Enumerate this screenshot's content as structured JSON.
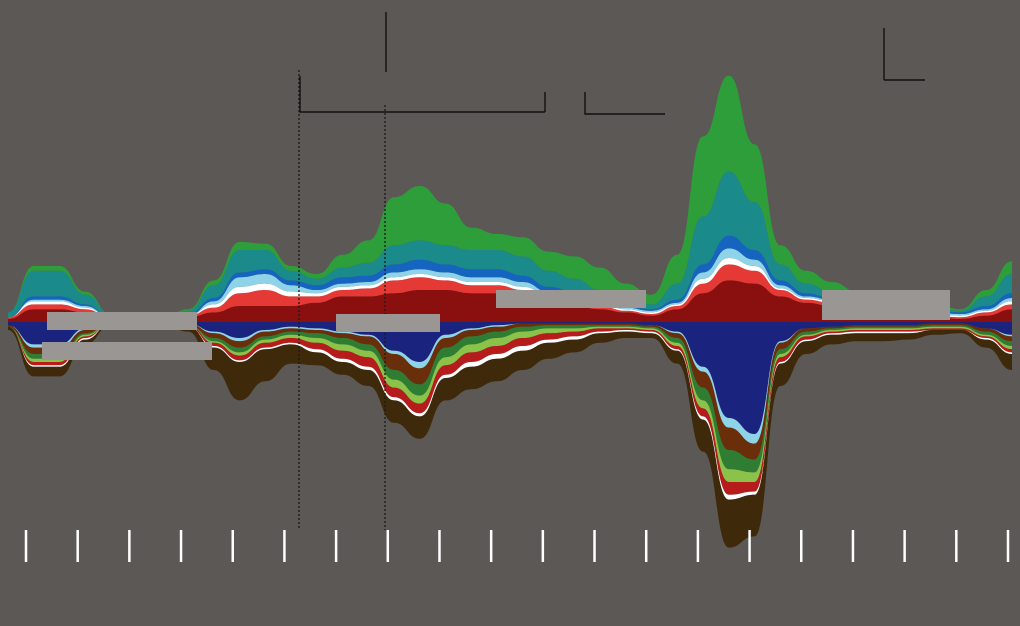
{
  "chart_data": {
    "type": "area",
    "subtype": "streamgraph",
    "title": "",
    "xlabel": "",
    "ylabel": "",
    "grid": false,
    "legend": "none",
    "x": [
      0,
      0.5,
      1,
      1.5,
      2,
      2.5,
      3,
      3.5,
      4,
      4.5,
      5,
      5.5,
      6,
      6.5,
      7,
      7.5,
      8,
      8.5,
      9,
      9.5,
      10,
      10.5,
      11,
      11.5,
      12,
      12.5,
      13,
      13.5,
      14,
      14.5,
      15,
      15.5,
      16,
      16.5,
      17,
      17.5,
      18,
      18.5,
      19,
      19.5
    ],
    "xlim": [
      0,
      19.5
    ],
    "tick_count": 20,
    "baseline_y": 322,
    "series": [
      {
        "color": "#1a237e",
        "side": "below",
        "values": [
          2,
          14,
          14,
          4,
          1,
          0,
          0,
          1,
          6,
          10,
          5,
          3,
          4,
          6,
          8,
          18,
          25,
          8,
          4,
          2,
          1,
          1,
          1,
          1,
          1,
          2,
          6,
          28,
          60,
          70,
          12,
          4,
          3,
          2,
          2,
          2,
          1,
          1,
          4,
          8
        ]
      },
      {
        "color": "#8fd3e8",
        "side": "below",
        "values": [
          0,
          2,
          2,
          1,
          0,
          0,
          0,
          0,
          1,
          2,
          1,
          1,
          1,
          1,
          1,
          2,
          4,
          2,
          1,
          1,
          0,
          0,
          0,
          0,
          0,
          0,
          1,
          3,
          6,
          6,
          1,
          0,
          0,
          0,
          0,
          0,
          0,
          0,
          0,
          1
        ]
      },
      {
        "color": "#6a2e0a",
        "side": "below",
        "values": [
          1,
          4,
          4,
          2,
          0,
          0,
          0,
          1,
          3,
          4,
          3,
          2,
          2,
          3,
          5,
          10,
          10,
          6,
          4,
          3,
          2,
          1,
          1,
          1,
          1,
          1,
          3,
          10,
          14,
          10,
          4,
          2,
          1,
          1,
          1,
          1,
          1,
          1,
          2,
          3
        ]
      },
      {
        "color": "#2e7d32",
        "side": "below",
        "values": [
          0,
          3,
          3,
          1,
          0,
          0,
          0,
          0,
          2,
          3,
          2,
          2,
          3,
          4,
          4,
          6,
          7,
          6,
          5,
          4,
          3,
          2,
          2,
          1,
          1,
          1,
          3,
          8,
          12,
          8,
          3,
          2,
          1,
          1,
          1,
          1,
          1,
          1,
          2,
          3
        ]
      },
      {
        "color": "#8bc34a",
        "side": "below",
        "values": [
          0,
          2,
          2,
          1,
          0,
          0,
          0,
          0,
          1,
          2,
          2,
          2,
          3,
          4,
          4,
          5,
          5,
          5,
          5,
          5,
          4,
          3,
          2,
          1,
          1,
          1,
          2,
          5,
          8,
          6,
          2,
          1,
          1,
          1,
          1,
          1,
          1,
          1,
          1,
          2
        ]
      },
      {
        "color": "#b71c1c",
        "side": "below",
        "values": [
          0,
          2,
          2,
          1,
          0,
          0,
          0,
          1,
          2,
          3,
          3,
          3,
          4,
          5,
          6,
          6,
          6,
          6,
          6,
          5,
          5,
          4,
          3,
          2,
          1,
          1,
          2,
          5,
          8,
          6,
          3,
          2,
          1,
          1,
          1,
          1,
          1,
          1,
          1,
          2
        ]
      },
      {
        "color": "#ffffff",
        "side": "below",
        "values": [
          0,
          1,
          1,
          1,
          0,
          0,
          0,
          0,
          1,
          1,
          1,
          1,
          2,
          2,
          2,
          2,
          2,
          2,
          3,
          3,
          3,
          2,
          2,
          1,
          1,
          1,
          1,
          2,
          3,
          2,
          1,
          1,
          1,
          1,
          1,
          1,
          0,
          0,
          1,
          1
        ]
      },
      {
        "color": "#3e2a0a",
        "side": "below",
        "values": [
          2,
          6,
          6,
          3,
          1,
          1,
          1,
          3,
          14,
          24,
          20,
          12,
          8,
          8,
          10,
          14,
          14,
          14,
          14,
          14,
          12,
          10,
          8,
          6,
          4,
          3,
          8,
          20,
          30,
          26,
          14,
          8,
          6,
          5,
          5,
          4,
          3,
          2,
          5,
          10
        ]
      },
      {
        "color": "#8a1010",
        "side": "above",
        "values": [
          2,
          8,
          8,
          6,
          2,
          1,
          1,
          3,
          6,
          10,
          10,
          10,
          12,
          16,
          16,
          18,
          20,
          20,
          18,
          18,
          16,
          12,
          10,
          8,
          6,
          4,
          8,
          18,
          26,
          24,
          16,
          12,
          10,
          8,
          6,
          4,
          3,
          2,
          4,
          8
        ]
      },
      {
        "color": "#e53935",
        "side": "above",
        "values": [
          1,
          3,
          3,
          2,
          1,
          0,
          0,
          1,
          3,
          8,
          10,
          6,
          4,
          4,
          5,
          8,
          8,
          6,
          5,
          5,
          4,
          3,
          3,
          2,
          1,
          1,
          2,
          6,
          10,
          8,
          4,
          2,
          2,
          1,
          1,
          1,
          1,
          1,
          2,
          3
        ]
      },
      {
        "color": "#ffffff",
        "side": "above",
        "values": [
          0,
          2,
          2,
          1,
          0,
          0,
          0,
          0,
          2,
          4,
          4,
          3,
          2,
          2,
          2,
          2,
          2,
          2,
          2,
          2,
          2,
          2,
          1,
          1,
          1,
          1,
          1,
          3,
          4,
          3,
          1,
          1,
          1,
          1,
          1,
          1,
          1,
          1,
          1,
          2
        ]
      },
      {
        "color": "#8fd3e8",
        "side": "above",
        "values": [
          0,
          1,
          1,
          1,
          0,
          0,
          0,
          0,
          2,
          6,
          6,
          4,
          2,
          2,
          2,
          3,
          3,
          3,
          3,
          3,
          3,
          2,
          2,
          1,
          1,
          1,
          1,
          4,
          6,
          4,
          2,
          1,
          1,
          1,
          1,
          1,
          1,
          1,
          1,
          2
        ]
      },
      {
        "color": "#1565c0",
        "side": "above",
        "values": [
          0,
          2,
          2,
          1,
          0,
          0,
          0,
          1,
          2,
          3,
          3,
          3,
          3,
          4,
          4,
          5,
          6,
          5,
          5,
          5,
          4,
          3,
          3,
          2,
          1,
          1,
          2,
          5,
          8,
          6,
          3,
          2,
          1,
          1,
          1,
          1,
          1,
          1,
          2,
          3
        ]
      },
      {
        "color": "#1a8a8a",
        "side": "above",
        "values": [
          3,
          16,
          16,
          6,
          2,
          1,
          1,
          2,
          8,
          14,
          12,
          6,
          4,
          6,
          8,
          12,
          12,
          12,
          12,
          12,
          12,
          10,
          8,
          6,
          4,
          3,
          10,
          30,
          40,
          30,
          10,
          6,
          4,
          3,
          2,
          2,
          2,
          1,
          6,
          12
        ]
      },
      {
        "color": "#2e9e3a",
        "side": "above",
        "values": [
          0,
          3,
          3,
          2,
          0,
          0,
          0,
          1,
          3,
          5,
          4,
          3,
          3,
          8,
          14,
          30,
          34,
          26,
          14,
          10,
          12,
          12,
          14,
          14,
          10,
          6,
          18,
          50,
          60,
          36,
          12,
          8,
          6,
          4,
          3,
          2,
          2,
          1,
          4,
          8
        ]
      }
    ]
  }
}
